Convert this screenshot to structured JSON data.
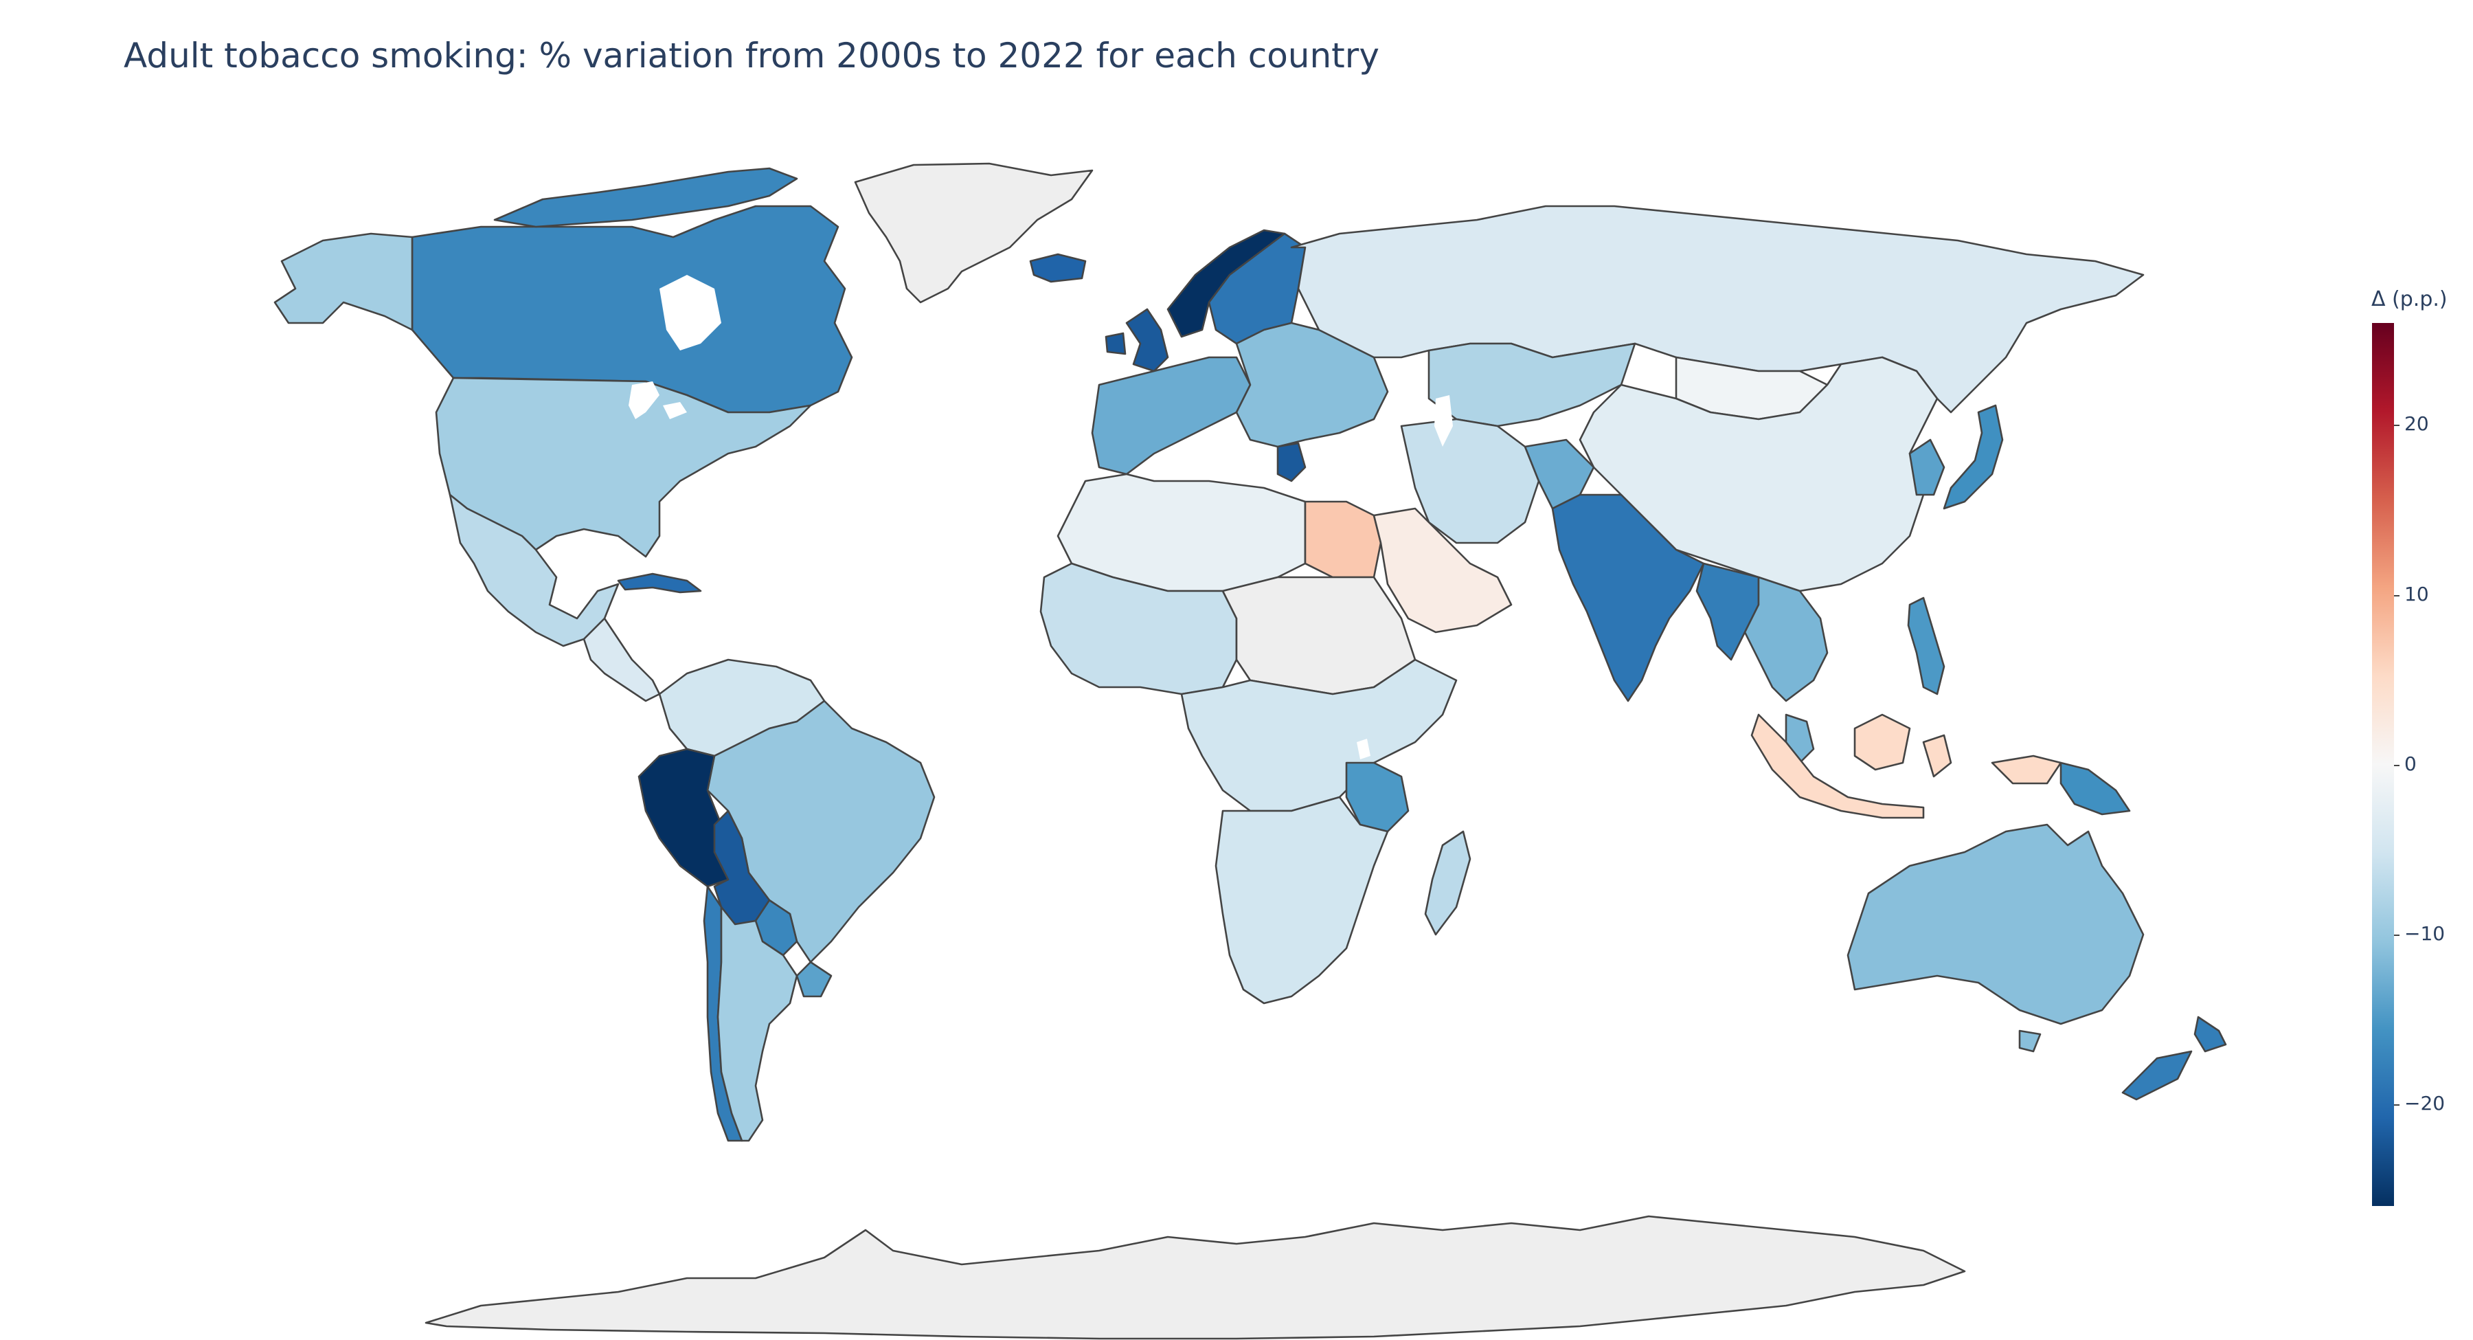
{
  "title": "Adult tobacco smoking: % variation from 2000s to 2022 for each country",
  "colorbar": {
    "title": "Δ (p.p.)",
    "ticks": [
      "20",
      "10",
      "0",
      "−10",
      "−20"
    ],
    "range": [
      -26,
      26
    ],
    "colorscale": [
      "#053061",
      "#2166ac",
      "#4393c3",
      "#92c5de",
      "#d1e5f0",
      "#f7f7f7",
      "#fddbc7",
      "#f4a582",
      "#d6604d",
      "#b2182b",
      "#67001f"
    ]
  },
  "colors": {
    "no_data": "#eeeeee",
    "border": "#444444",
    "ocean": "#ffffff"
  },
  "regions": [
    {
      "name": "Greenland",
      "value": null
    },
    {
      "name": "Canada",
      "value": -17
    },
    {
      "name": "Alaska (USA)",
      "value": -9
    },
    {
      "name": "USA",
      "value": -9
    },
    {
      "name": "Mexico",
      "value": -7
    },
    {
      "name": "Central America",
      "value": -4
    },
    {
      "name": "Cuba",
      "value": -20
    },
    {
      "name": "Colombia / Venezuela",
      "value": -5
    },
    {
      "name": "Peru",
      "value": -26
    },
    {
      "name": "Bolivia",
      "value": -22
    },
    {
      "name": "Brazil",
      "value": -10
    },
    {
      "name": "Chile",
      "value": -18
    },
    {
      "name": "Argentina",
      "value": -9
    },
    {
      "name": "Paraguay",
      "value": -17
    },
    {
      "name": "Uruguay",
      "value": -14
    },
    {
      "name": "Iceland",
      "value": -21
    },
    {
      "name": "United Kingdom",
      "value": -22
    },
    {
      "name": "Norway",
      "value": -26
    },
    {
      "name": "Sweden",
      "value": -19
    },
    {
      "name": "Western Europe",
      "value": -13
    },
    {
      "name": "Eastern Europe",
      "value": -11
    },
    {
      "name": "Greece",
      "value": -22
    },
    {
      "name": "Russia",
      "value": -4
    },
    {
      "name": "Kazakhstan",
      "value": -8
    },
    {
      "name": "Mongolia",
      "value": -1
    },
    {
      "name": "China",
      "value": -3
    },
    {
      "name": "Japan",
      "value": -16
    },
    {
      "name": "Korea",
      "value": -14
    },
    {
      "name": "Afghanistan",
      "value": -13
    },
    {
      "name": "Iran",
      "value": -6
    },
    {
      "name": "India",
      "value": -19
    },
    {
      "name": "Myanmar",
      "value": -18
    },
    {
      "name": "Southeast Asia",
      "value": -12
    },
    {
      "name": "Philippines",
      "value": -15
    },
    {
      "name": "Indonesia",
      "value": 5
    },
    {
      "name": "Papua New Guinea",
      "value": -16
    },
    {
      "name": "Australia",
      "value": -11
    },
    {
      "name": "New Zealand",
      "value": -18
    },
    {
      "name": "North Africa",
      "value": -2
    },
    {
      "name": "Egypt",
      "value": 7
    },
    {
      "name": "Saudi Arabia",
      "value": 2
    },
    {
      "name": "West Africa",
      "value": -6
    },
    {
      "name": "Sahel",
      "value": null
    },
    {
      "name": "Central Africa",
      "value": -5
    },
    {
      "name": "Tanzania",
      "value": -15
    },
    {
      "name": "Southern Africa",
      "value": -5
    },
    {
      "name": "Madagascar",
      "value": -7
    },
    {
      "name": "Antarctica",
      "value": null
    }
  ]
}
